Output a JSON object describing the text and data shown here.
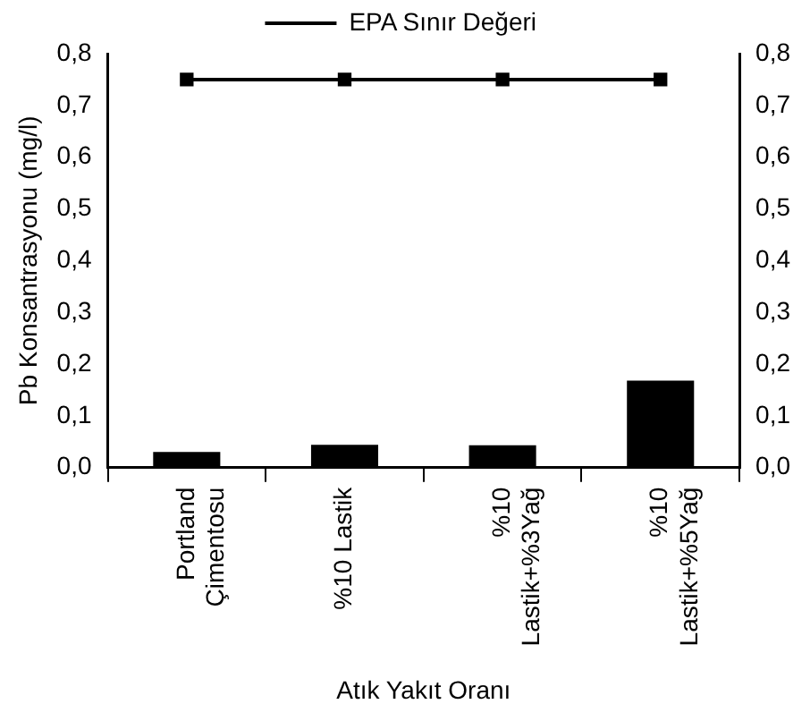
{
  "chart_data": {
    "type": "bar",
    "xlabel": "Atık Yakıt Oranı",
    "ylabel": "Pb Konsantrasyonu (mg/l)",
    "categories": [
      "Portland\nÇimentosu",
      "%10 Lastik",
      "%10\nLastik+%3Yağ",
      "%10\nLastik+%5Yağ"
    ],
    "series": [
      {
        "color": "#000000",
        "values": [
          0.03,
          0.044,
          0.043,
          0.168
        ]
      },
      {
        "type": "line",
        "name": "EPA Sınır Değeri",
        "color": "#000000",
        "values": [
          0.75,
          0.75,
          0.75,
          0.75
        ]
      }
    ],
    "ylim": [
      0,
      0.8
    ],
    "yticks": [
      {
        "value": 0,
        "label": "0,0"
      },
      {
        "value": 0.1,
        "label": "0,1"
      },
      {
        "value": 0.2,
        "label": "0,2"
      },
      {
        "value": 0.3,
        "label": "0,3"
      },
      {
        "value": 0.4,
        "label": "0,4"
      },
      {
        "value": 0.5,
        "label": "0,5"
      },
      {
        "value": 0.6,
        "label": "0,6"
      },
      {
        "value": 0.7,
        "label": "0,7"
      },
      {
        "value": 0.8,
        "label": "0,8"
      }
    ],
    "y2lim": [
      0,
      0.8
    ],
    "y2ticks": [
      {
        "value": 0,
        "label": "0,0"
      },
      {
        "value": 0.1,
        "label": "0,1"
      },
      {
        "value": 0.2,
        "label": "0,2"
      },
      {
        "value": 0.3,
        "label": "0,3"
      },
      {
        "value": 0.4,
        "label": "0,4"
      },
      {
        "value": 0.5,
        "label": "0,5"
      },
      {
        "value": 0.6,
        "label": "0,6"
      },
      {
        "value": 0.7,
        "label": "0,7"
      },
      {
        "value": 0.8,
        "label": "0,8"
      }
    ],
    "legend": "top",
    "marker": "square"
  }
}
